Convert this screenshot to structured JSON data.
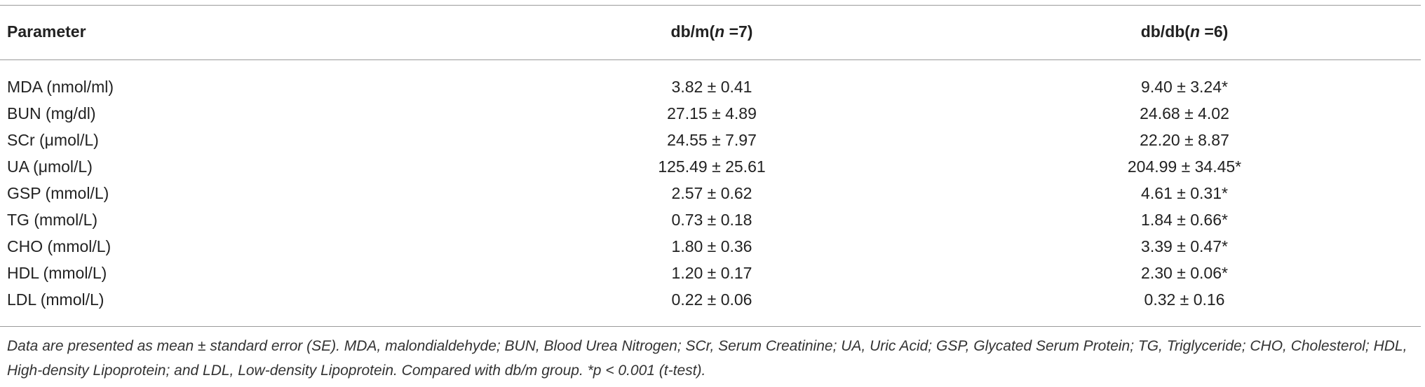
{
  "table": {
    "header": [
      [
        "Parameter"
      ],
      [
        "db/m(",
        "n",
        " =7)"
      ],
      [
        "db/db(",
        "n",
        " =6)"
      ]
    ],
    "rows": [
      [
        "MDA (nmol/ml)",
        "3.82 ± 0.41",
        "9.40 ± 3.24*"
      ],
      [
        "BUN (mg/dl)",
        "27.15 ± 4.89",
        "24.68 ± 4.02"
      ],
      [
        "SCr (μmol/L)",
        "24.55 ± 7.97",
        "22.20 ± 8.87"
      ],
      [
        "UA (μmol/L)",
        "125.49 ± 25.61",
        "204.99 ± 34.45*"
      ],
      [
        "GSP (mmol/L)",
        "2.57 ± 0.62",
        "4.61 ± 0.31*"
      ],
      [
        "TG (mmol/L)",
        "0.73 ± 0.18",
        "1.84 ± 0.66*"
      ],
      [
        "CHO (mmol/L)",
        "1.80 ± 0.36",
        "3.39 ± 0.47*"
      ],
      [
        "HDL (mmol/L)",
        "1.20 ± 0.17",
        "2.30 ± 0.06*"
      ],
      [
        "LDL (mmol/L)",
        "0.22 ± 0.06",
        "0.32 ± 0.16"
      ]
    ],
    "footnote": "Data are presented as mean ± standard error (SE). MDA, malondialdehyde; BUN, Blood Urea Nitrogen; SCr, Serum Creatinine; UA, Uric Acid; GSP, Glycated Serum Protein; TG, Triglyceride; CHO, Cholesterol; HDL, High-density Lipoprotein; and LDL, Low-density Lipoprotein. Compared with db/m group. *p < 0.001 (t-test)."
  }
}
